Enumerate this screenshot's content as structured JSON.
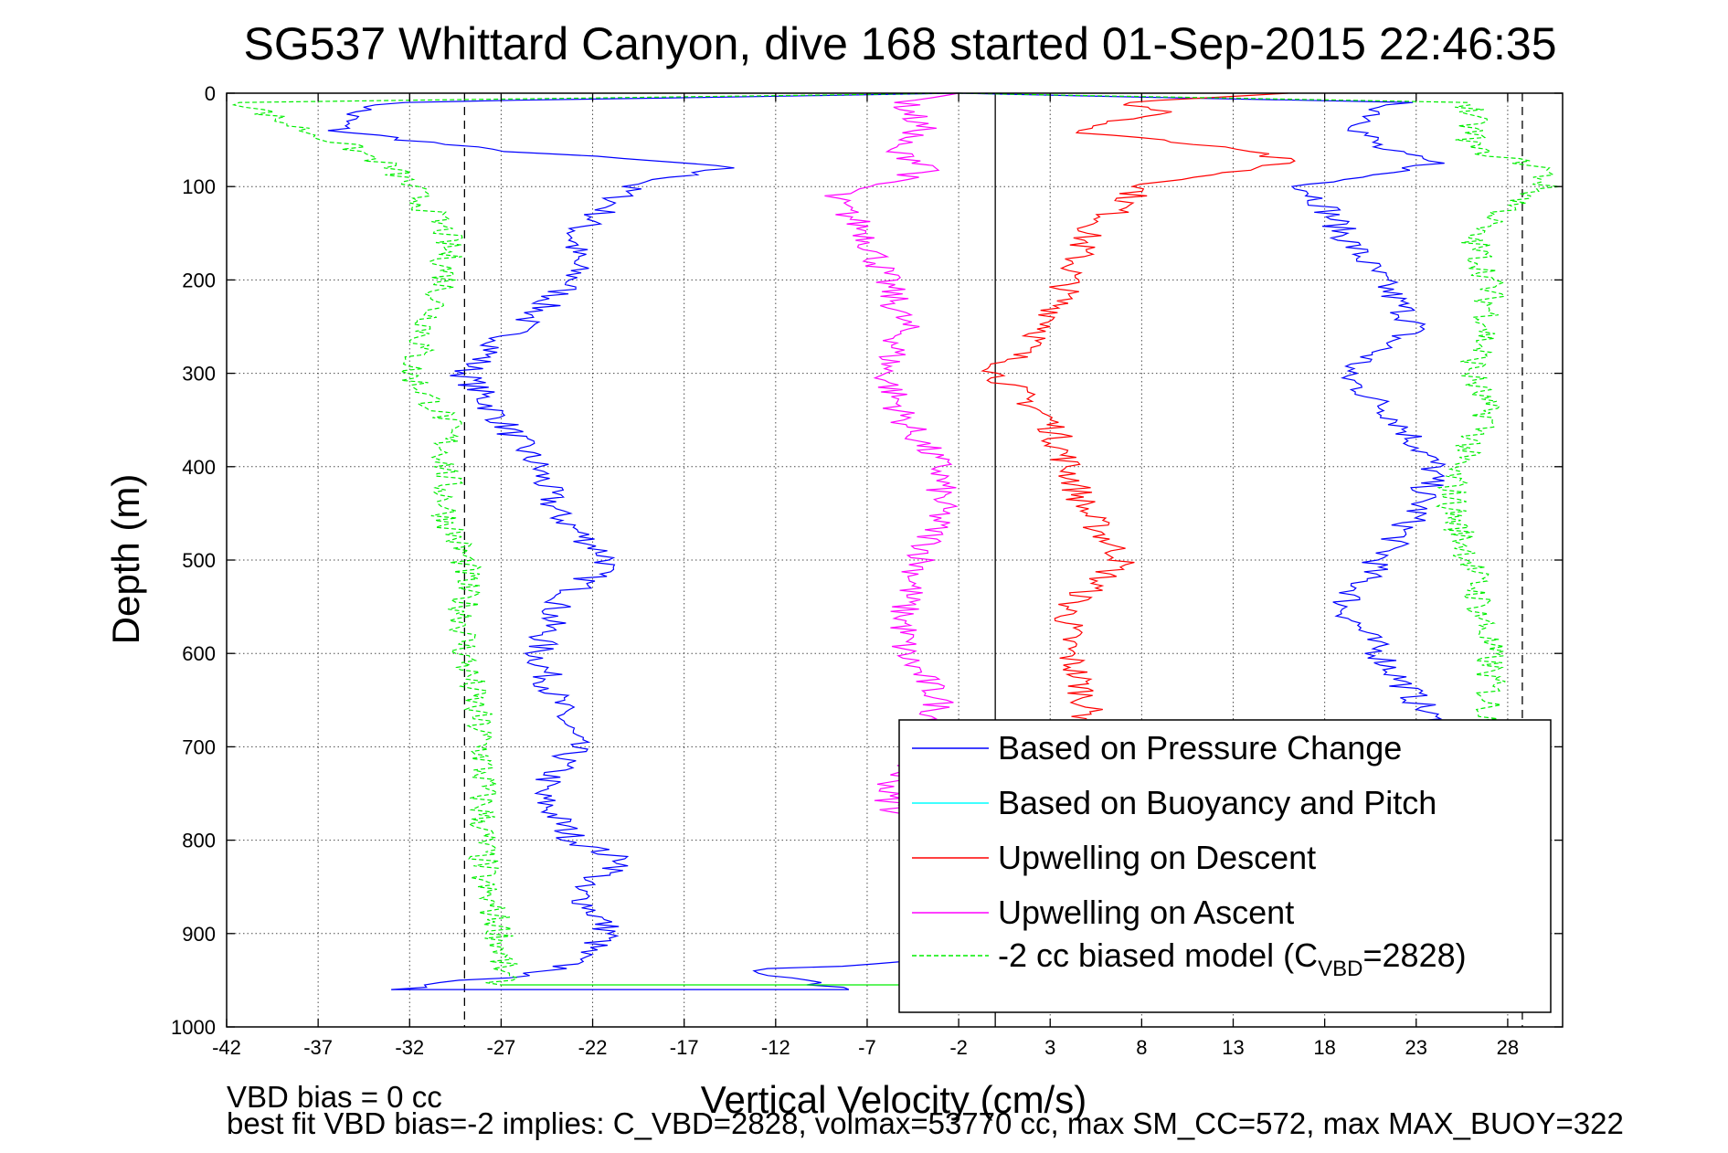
{
  "chart_data": {
    "type": "line",
    "title": "SG537 Whittard Canyon, dive 168 started 01-Sep-2015 22:46:35",
    "xlabel": "Vertical Velocity (cm/s)",
    "ylabel": "Depth (m)",
    "xlim": [
      -42,
      31
    ],
    "ylim": [
      0,
      1000
    ],
    "y_reversed": true,
    "x_ticks": [
      -42,
      -37,
      -32,
      -27,
      -22,
      -17,
      -12,
      -7,
      -2,
      3,
      8,
      13,
      18,
      23,
      28
    ],
    "y_ticks": [
      0,
      100,
      200,
      300,
      400,
      500,
      600,
      700,
      800,
      900,
      1000
    ],
    "grid": true,
    "legend_position": "bottom-right",
    "vertical_lines": [
      {
        "x": -29,
        "style": "dashed",
        "color": "#000000"
      },
      {
        "x": 0,
        "style": "solid",
        "color": "#000000"
      },
      {
        "x": 28.8,
        "style": "dashed",
        "color": "#000000"
      }
    ],
    "series": [
      {
        "name": "Based on Pressure Change",
        "color": "#0000ff",
        "y": [
          0,
          10,
          20,
          40,
          60,
          75,
          80,
          100,
          120,
          150,
          200,
          250,
          300,
          350,
          400,
          450,
          500,
          550,
          600,
          650,
          700,
          750,
          800,
          825,
          850,
          900,
          940,
          960
        ],
        "x_down": [
          -2,
          -33,
          -35,
          -36,
          -28,
          -17,
          -15,
          -20,
          -21,
          -23,
          -23,
          -26,
          -29,
          -27,
          -25,
          -24,
          -21,
          -24,
          -25,
          -24,
          -23,
          -25,
          -23,
          -20,
          -23,
          -21,
          -24,
          -33
        ],
        "x_up": [
          -2,
          22,
          21,
          20,
          21,
          24,
          23,
          17,
          18,
          19,
          21,
          23,
          19,
          22,
          24,
          23,
          21,
          19,
          21,
          23,
          25,
          25,
          25,
          25,
          25,
          25,
          -14,
          -8
        ]
      },
      {
        "name": "Based on Buoyancy and Pitch",
        "color": "#00ffff",
        "y": [],
        "x": []
      },
      {
        "name": "Upwelling on Descent",
        "color": "#ff0000",
        "y": [
          0,
          10,
          20,
          40,
          60,
          75,
          100,
          120,
          150,
          200,
          250,
          300,
          350,
          400,
          450,
          500,
          550,
          600,
          650,
          670
        ],
        "x": [
          16,
          7,
          10,
          4,
          14,
          16,
          8,
          7,
          5,
          4,
          3,
          0,
          3,
          4,
          5,
          7,
          4,
          4,
          5,
          5
        ]
      },
      {
        "name": "Upwelling on Ascent",
        "color": "#ff00ff",
        "y": [
          0,
          10,
          40,
          60,
          80,
          100,
          110,
          150,
          200,
          250,
          300,
          350,
          400,
          450,
          500,
          550,
          600,
          650,
          700,
          750,
          780
        ],
        "x": [
          -2,
          -5,
          -4,
          -6,
          -3,
          -7,
          -9,
          -7,
          -6,
          -5,
          -6,
          -5,
          -3,
          -3,
          -4,
          -5,
          -5,
          -3,
          -4,
          -6,
          -5
        ]
      },
      {
        "name": "-2 cc biased model (C_VBD=2828)",
        "legend_label_main": "-2 cc biased model (C",
        "legend_label_sub": "VBD",
        "legend_label_end": "=2828)",
        "color": "#00ee00",
        "style": "dashed",
        "y": [
          0,
          10,
          30,
          60,
          80,
          100,
          150,
          200,
          250,
          300,
          350,
          400,
          450,
          500,
          600,
          700,
          800,
          850,
          900,
          940,
          955
        ],
        "x_down": [
          -2,
          -41,
          -39,
          -35,
          -33,
          -32,
          -30,
          -30,
          -31,
          -32,
          -30,
          -30,
          -30,
          -29,
          -29,
          -28,
          -28,
          -28,
          -27,
          -27,
          -27
        ],
        "x_up": [
          -2,
          26,
          26,
          26,
          30,
          30,
          26,
          27,
          27,
          26,
          27,
          25,
          25,
          26,
          27,
          27,
          27,
          27,
          27,
          27,
          27
        ]
      }
    ]
  },
  "footer": {
    "line1": "VBD bias = 0 cc",
    "line2": "best fit VBD bias=-2 implies: C_VBD=2828, volmax=53770 cc, max SM_CC=572, max MAX_BUOY=322"
  }
}
